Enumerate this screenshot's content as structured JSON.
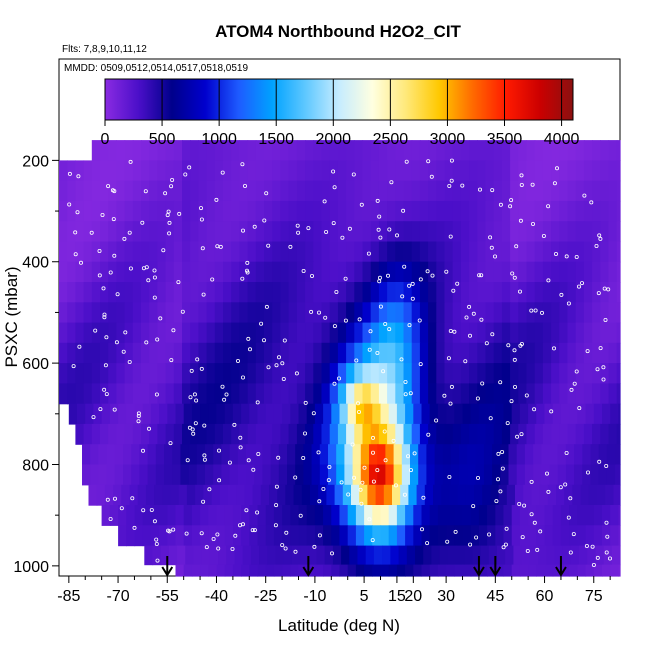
{
  "chart_data": {
    "type": "heatmap",
    "title": "ATOM4 Northbound H2O2_CIT",
    "flights_note": "Flts: 7,8,9,10,11,12",
    "dates_note": "MMDD: 0509,0512,0514,0517,0518,0519",
    "xlabel": "Latitude (deg N)",
    "ylabel": "PSXC (mbar)",
    "x_ticks": [
      -85,
      -70,
      -55,
      -40,
      -25,
      -10,
      5,
      15,
      20,
      30,
      45,
      60,
      75
    ],
    "x_tick_labels": [
      "-85",
      "-70",
      "-55",
      "-40",
      "-25",
      "-10",
      "5",
      "15",
      "20",
      "30",
      "45",
      "60",
      "75"
    ],
    "y_ticks": [
      200,
      400,
      600,
      800,
      1000
    ],
    "y_tick_labels": [
      "200",
      "400",
      "600",
      "800",
      "1000"
    ],
    "xlim": [
      -88,
      83
    ],
    "ylim": [
      1020,
      0
    ],
    "colorbar": {
      "min": 0,
      "max": 4100,
      "ticks": [
        0,
        500,
        1000,
        1500,
        2000,
        2500,
        3000,
        3500,
        4000
      ],
      "tick_labels": [
        "0",
        "500",
        "1000",
        "1500",
        "2000",
        "2500",
        "3000",
        "3500",
        "4000"
      ]
    },
    "palette": [
      "#8a2be2",
      "#4b0fc9",
      "#00008b",
      "#0000cd",
      "#1e5bff",
      "#00a2ff",
      "#5fc8ff",
      "#c6ecff",
      "#ffffe0",
      "#ffe97a",
      "#ffc800",
      "#ff6a00",
      "#ff1a00",
      "#cc0000",
      "#8b1010"
    ],
    "pressure_levels": [
      180,
      220,
      260,
      300,
      340,
      380,
      420,
      460,
      500,
      540,
      580,
      620,
      660,
      700,
      740,
      780,
      820,
      860,
      900,
      940,
      980,
      1015
    ],
    "surface_coverage_start_lat": [
      -78,
      -88,
      -88,
      -88,
      -88,
      -88,
      -88,
      -88,
      -88,
      -88,
      -88,
      -88,
      -88,
      -85,
      -83,
      -81,
      -81,
      -79,
      -75,
      -70,
      -62,
      -55
    ],
    "coverage_end_lat": 83,
    "h2o2_profile_model": "Background 200-400 pptv at high latitudes, 400-800 pptv mid-latitudes, enhanced 1500-3500 pptv in the tropical lower troposphere (0-20 N, 600-950 mbar), peak ~3800 pptv near 8 N at 800 mbar",
    "peak_value": 3800,
    "peak_lat": 8,
    "peak_p": 800,
    "ascent_markers_lat": [
      -55,
      -12,
      40,
      45,
      65
    ]
  }
}
